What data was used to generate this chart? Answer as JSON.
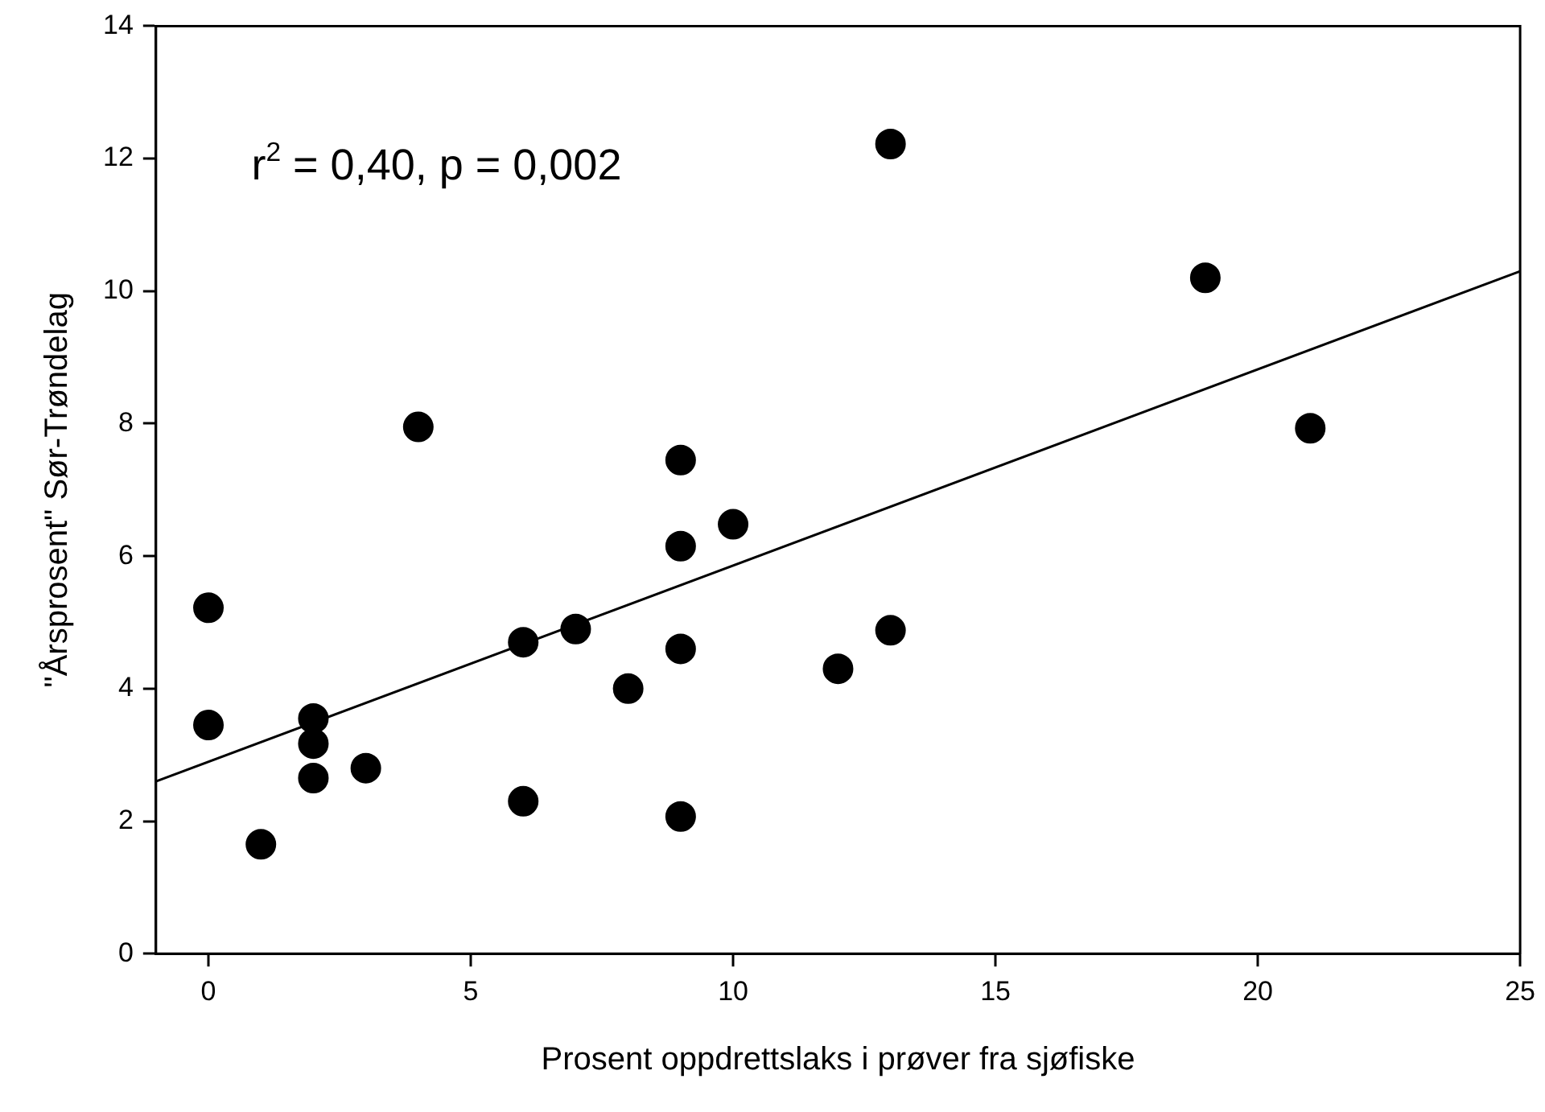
{
  "chart_data": {
    "type": "scatter",
    "xlabel": "Prosent oppdrettslaks i prøver fra sjøfiske",
    "ylabel": "\"Årsprosent\" Sør-Trøndelag",
    "annotations": [
      "r$^{2}$ = 0,40, p = 0,002"
    ],
    "xlim": [
      -1,
      25
    ],
    "xticks": [
      0,
      5,
      10,
      15,
      20,
      25
    ],
    "ylim": [
      0,
      14
    ],
    "yticks": [
      0,
      2,
      4,
      6,
      8,
      10,
      12,
      14
    ],
    "grid": false,
    "legend": false,
    "marker": "circle",
    "series": [
      {
        "type": "scatter",
        "color": "#000000",
        "x": [
          0,
          0,
          1,
          2,
          2,
          2,
          3,
          4,
          6,
          6,
          7,
          8,
          9,
          9,
          9,
          9,
          10,
          12,
          13,
          13,
          19,
          21
        ],
        "values": [
          5.22,
          3.45,
          1.65,
          3.55,
          3.17,
          2.65,
          2.8,
          7.95,
          4.7,
          2.3,
          4.9,
          4.0,
          7.45,
          6.15,
          4.6,
          2.07,
          6.48,
          4.3,
          4.88,
          12.22,
          10.2,
          7.93
        ]
      },
      {
        "type": "line",
        "color": "#000000",
        "marker": "none",
        "line_style": "solid",
        "x": [
          -1,
          25
        ],
        "values": [
          2.6,
          10.3
        ]
      }
    ]
  }
}
